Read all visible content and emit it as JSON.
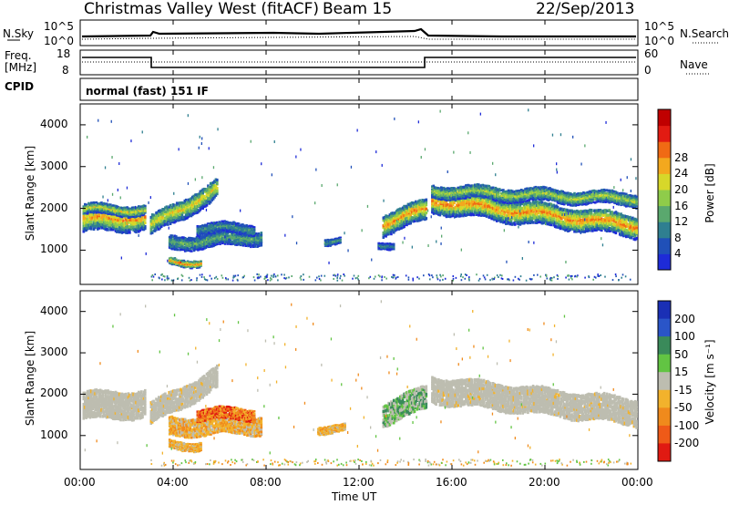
{
  "header": {
    "station": "Christmas Valley West (fitACF)",
    "beam": "Beam 15",
    "date": "22/Sep/2013"
  },
  "labels": {
    "nsky": "N.Sky",
    "nsearch": "N.Search",
    "freq_line1": "Freq.",
    "freq_line2": "[MHz]",
    "nave": "Nave",
    "cpid": "CPID",
    "mode": "normal (fast) 151 IF",
    "noise_left_ticks": [
      "10^5",
      "10^0"
    ],
    "noise_right_ticks": [
      "10^5",
      "10^0"
    ],
    "freq_left_ticks": [
      "18",
      "8"
    ],
    "freq_right_ticks": [
      "60",
      "0"
    ]
  },
  "chart_data": [
    {
      "type": "heatmap",
      "title": "",
      "ylabel": "Slant Range [km]",
      "xlabel": "",
      "ylim": [
        180,
        4500
      ],
      "yticks": [
        "1000",
        "2000",
        "3000",
        "4000"
      ],
      "colorbar": {
        "label": "Power [dB]",
        "ticks": [
          "4",
          "8",
          "12",
          "16",
          "20",
          "24",
          "28"
        ],
        "colors": [
          "#1e2bd8",
          "#2050b8",
          "#2f7f90",
          "#5aa86e",
          "#8fcc4a",
          "#d7d72a",
          "#f3a81e",
          "#f06a14",
          "#e21b12",
          "#c00000"
        ]
      }
    },
    {
      "type": "heatmap",
      "title": "",
      "ylabel": "Slant Range [km]",
      "xlabel": "Time UT",
      "ylim": [
        180,
        4500
      ],
      "yticks": [
        "1000",
        "2000",
        "3000",
        "4000"
      ],
      "xticks": [
        "00:00",
        "04:00",
        "08:00",
        "12:00",
        "16:00",
        "20:00",
        "00:00"
      ],
      "colorbar": {
        "label": "Velocity [m s⁻¹]",
        "ticks": [
          "200",
          "100",
          "50",
          "15",
          "-15",
          "-50",
          "-100",
          "-200"
        ],
        "colors": [
          "#1a2fb5",
          "#2a55c8",
          "#3a8a5a",
          "#62c443",
          "#bdbdb0",
          "#f2b22c",
          "#f08a1c",
          "#ef5a18",
          "#e01a12"
        ]
      }
    }
  ]
}
